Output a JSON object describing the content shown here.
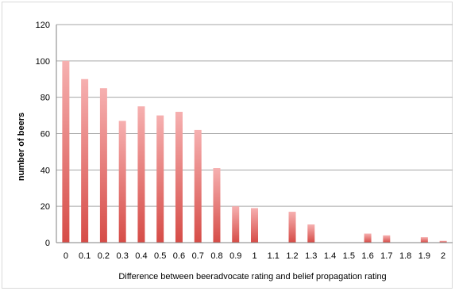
{
  "chart_data": {
    "type": "bar",
    "title": "",
    "xlabel": "Difference between beeradvocate rating and belief propagation rating",
    "ylabel": "number of beers",
    "ylim": [
      0,
      120
    ],
    "yticks": [
      "0",
      "20",
      "40",
      "60",
      "80",
      "100",
      "120"
    ],
    "grid": true,
    "legend": "none",
    "categories": [
      "0",
      "0.1",
      "0.2",
      "0.3",
      "0.4",
      "0.5",
      "0.6",
      "0.7",
      "0.8",
      "0.9",
      "1",
      "1.1",
      "1.2",
      "1.3",
      "1.4",
      "1.5",
      "1.6",
      "1.7",
      "1.8",
      "1.9",
      "2"
    ],
    "values": [
      100,
      90,
      85,
      67,
      75,
      70,
      72,
      62,
      41,
      20,
      19,
      0,
      17,
      10,
      0,
      0,
      5,
      4,
      0,
      3,
      1
    ],
    "colors": {
      "bar_top": "#f4a3a3",
      "bar_bottom": "#d9534f",
      "grid": "#a6a6a6",
      "axis": "#808080"
    }
  }
}
